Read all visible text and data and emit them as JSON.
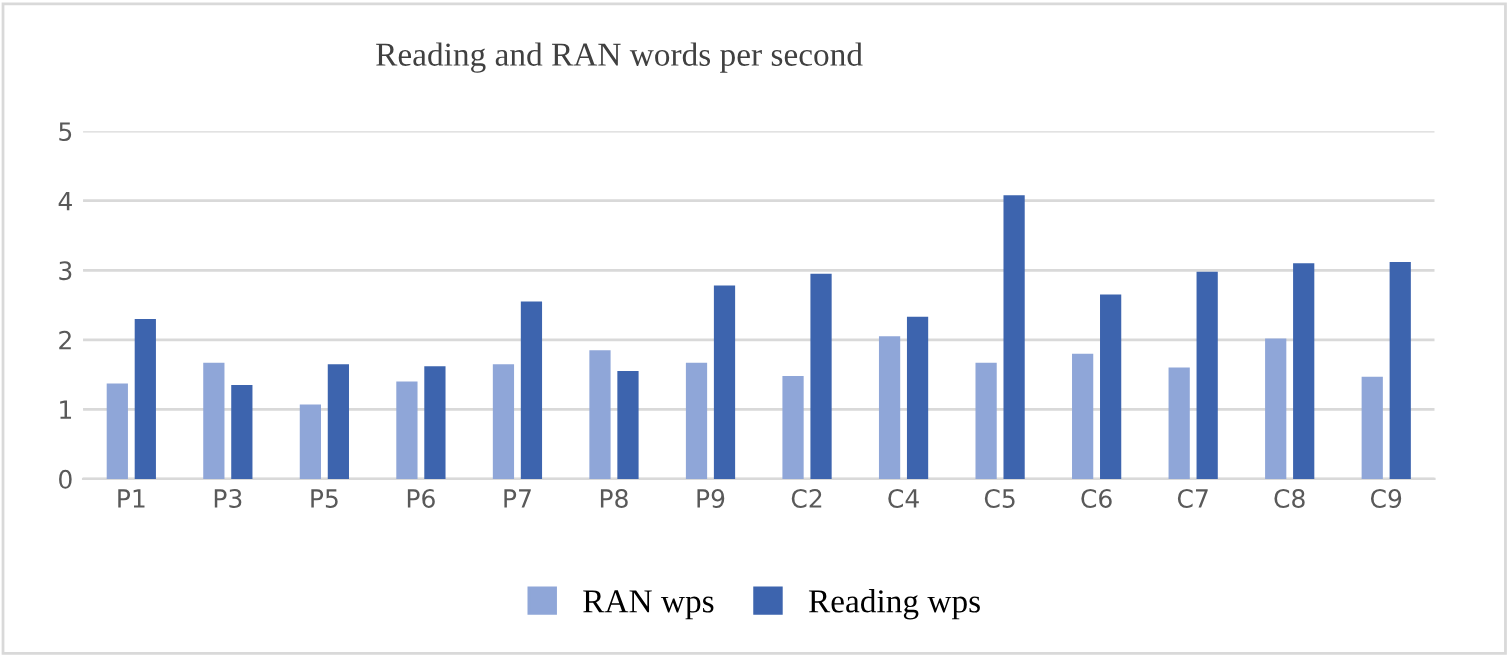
{
  "chart_data": {
    "type": "bar",
    "title": "Reading and RAN words per second",
    "categories": [
      "P1",
      "P3",
      "P5",
      "P6",
      "P7",
      "P8",
      "P9",
      "C2",
      "C4",
      "C5",
      "C6",
      "C7",
      "C8",
      "C9"
    ],
    "series": [
      {
        "name": "RAN wps",
        "color": "#8fa6d8",
        "values": [
          1.37,
          1.67,
          1.07,
          1.4,
          1.65,
          1.85,
          1.67,
          1.48,
          2.05,
          1.67,
          1.8,
          1.6,
          2.02,
          1.47
        ]
      },
      {
        "name": "Reading wps",
        "color": "#3d64ae",
        "values": [
          2.3,
          1.35,
          1.65,
          1.62,
          2.55,
          1.55,
          2.78,
          2.95,
          2.33,
          4.08,
          2.65,
          2.98,
          3.1,
          3.12
        ]
      }
    ],
    "ylim": [
      0,
      5
    ],
    "yticks": [
      0,
      1,
      2,
      3,
      4,
      5
    ],
    "grid": "y",
    "legend": "bottom"
  }
}
